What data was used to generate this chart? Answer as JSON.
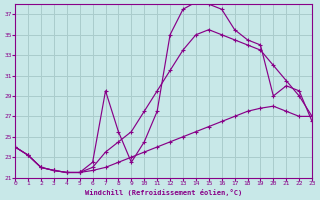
{
  "xlabel": "Windchill (Refroidissement éolien,°C)",
  "background_color": "#c8e8e8",
  "grid_color": "#aacccc",
  "line_color": "#880088",
  "xlim": [
    0,
    23
  ],
  "ylim": [
    21,
    38
  ],
  "yticks": [
    21,
    23,
    25,
    27,
    29,
    31,
    33,
    35,
    37
  ],
  "xticks": [
    0,
    1,
    2,
    3,
    4,
    5,
    6,
    7,
    8,
    9,
    10,
    11,
    12,
    13,
    14,
    15,
    16,
    17,
    18,
    19,
    20,
    21,
    22,
    23
  ],
  "curve1_x": [
    0,
    1,
    2,
    3,
    4,
    5,
    6,
    7,
    8,
    9,
    10,
    11,
    12,
    13,
    14,
    15,
    16,
    17,
    18,
    19,
    20,
    21,
    22,
    23
  ],
  "curve1_y": [
    24.0,
    23.2,
    22.0,
    21.7,
    21.5,
    21.5,
    22.0,
    23.5,
    24.5,
    25.5,
    27.5,
    29.5,
    31.5,
    33.5,
    35.0,
    35.5,
    35.0,
    34.5,
    34.0,
    33.5,
    32.0,
    30.5,
    29.0,
    27.0
  ],
  "curve2_x": [
    0,
    1,
    2,
    3,
    4,
    5,
    6,
    7,
    8,
    9,
    10,
    11,
    12,
    13,
    14,
    15,
    16,
    17,
    18,
    19,
    20,
    21,
    22,
    23
  ],
  "curve2_y": [
    24.0,
    23.2,
    22.0,
    21.7,
    21.5,
    21.5,
    22.5,
    29.5,
    25.5,
    22.5,
    24.5,
    27.5,
    35.0,
    37.5,
    38.2,
    38.0,
    37.5,
    35.5,
    34.5,
    34.0,
    29.0,
    30.0,
    29.5,
    26.5
  ],
  "curve3_x": [
    0,
    1,
    2,
    3,
    4,
    5,
    6,
    7,
    8,
    9,
    10,
    11,
    12,
    13,
    14,
    15,
    16,
    17,
    18,
    19,
    20,
    21,
    22,
    23
  ],
  "curve3_y": [
    24.0,
    23.2,
    22.0,
    21.7,
    21.5,
    21.5,
    21.7,
    22.0,
    22.5,
    23.0,
    23.5,
    24.0,
    24.5,
    25.0,
    25.5,
    26.0,
    26.5,
    27.0,
    27.5,
    27.8,
    28.0,
    27.5,
    27.0,
    27.0
  ]
}
